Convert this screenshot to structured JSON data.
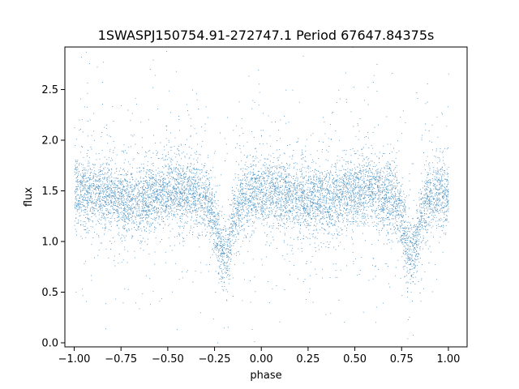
{
  "chart_data": {
    "type": "scatter",
    "title": "1SWASPJ150754.91-272747.1 Period 67647.84375s",
    "xlabel": "phase",
    "ylabel": "flux",
    "xlim": [
      -1.05,
      1.1
    ],
    "ylim": [
      -0.04,
      2.92
    ],
    "xticks": [
      -1.0,
      -0.75,
      -0.5,
      -0.25,
      0.0,
      0.25,
      0.5,
      0.75,
      1.0
    ],
    "xtick_labels": [
      "−1.00",
      "−0.75",
      "−0.50",
      "−0.25",
      "0.00",
      "0.25",
      "0.50",
      "0.75",
      "1.00"
    ],
    "yticks": [
      0.0,
      0.5,
      1.0,
      1.5,
      2.0,
      2.5
    ],
    "ytick_labels": [
      "0.0",
      "0.5",
      "1.0",
      "1.5",
      "2.0",
      "2.5"
    ],
    "grid": false,
    "legend": "none",
    "marker_color": "#1f77b4",
    "series": [
      {
        "x_range": [
          -1.0,
          1.0
        ],
        "baseline_flux": 1.45,
        "typical_spread": 0.17,
        "dips": [
          {
            "phase": -0.2,
            "min_flux": 0.9
          },
          {
            "phase": 0.8,
            "min_flux": 0.9
          }
        ]
      }
    ]
  }
}
